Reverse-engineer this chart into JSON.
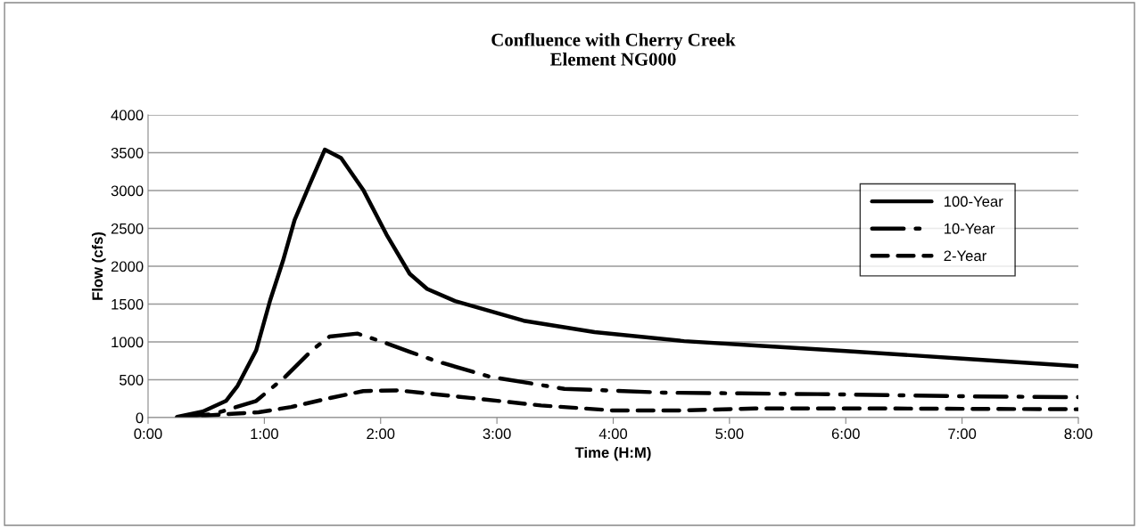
{
  "chart_data": {
    "type": "line",
    "title": "Confluence with Cherry Creek\nElement NG000",
    "xlabel": "Time (H:M)",
    "ylabel": "Flow (cfs)",
    "xlim": [
      0,
      8
    ],
    "xticks": [
      {
        "value": 0,
        "label": "0:00"
      },
      {
        "value": 1,
        "label": "1:00"
      },
      {
        "value": 2,
        "label": "2:00"
      },
      {
        "value": 3,
        "label": "3:00"
      },
      {
        "value": 4,
        "label": "4:00"
      },
      {
        "value": 5,
        "label": "5:00"
      },
      {
        "value": 6,
        "label": "6:00"
      },
      {
        "value": 7,
        "label": "7:00"
      },
      {
        "value": 8,
        "label": "8:00"
      }
    ],
    "ylim": [
      0,
      4000
    ],
    "yticks": [
      0,
      500,
      1000,
      1500,
      2000,
      2500,
      3000,
      3500,
      4000
    ],
    "grid": "y",
    "legend": "right",
    "marker": "none",
    "series": [
      {
        "name": "100-Year",
        "color": "#000000",
        "line_style": "solid",
        "x": [
          0.25,
          0.47,
          0.67,
          0.77,
          0.93,
          1.05,
          1.16,
          1.26,
          1.39,
          1.52,
          1.66,
          1.85,
          2.05,
          2.25,
          2.4,
          2.64,
          3.23,
          3.84,
          4.61,
          5.25,
          6.0,
          7.0,
          8.0
        ],
        "values": [
          10,
          80,
          220,
          420,
          890,
          1550,
          2070,
          2610,
          3080,
          3540,
          3430,
          3010,
          2420,
          1900,
          1700,
          1540,
          1280,
          1130,
          1010,
          950,
          880,
          780,
          680
        ]
      },
      {
        "name": "10-Year",
        "color": "#000000",
        "line_style": "dashdot",
        "x": [
          0.25,
          0.57,
          0.93,
          1.18,
          1.41,
          1.56,
          1.8,
          2.0,
          2.25,
          2.47,
          2.94,
          3.58,
          4.43,
          5.09,
          5.76,
          7.09,
          8.0
        ],
        "values": [
          0,
          50,
          220,
          540,
          890,
          1070,
          1110,
          1010,
          870,
          750,
          540,
          380,
          330,
          320,
          310,
          280,
          270
        ]
      },
      {
        "name": "2-Year",
        "color": "#000000",
        "line_style": "dashed",
        "x": [
          0.25,
          0.72,
          0.95,
          1.23,
          1.54,
          1.85,
          2.15,
          2.77,
          3.38,
          3.99,
          4.61,
          5.22,
          6.4,
          8.0
        ],
        "values": [
          0,
          50,
          70,
          140,
          250,
          350,
          360,
          260,
          160,
          95,
          95,
          120,
          120,
          110
        ]
      }
    ]
  }
}
